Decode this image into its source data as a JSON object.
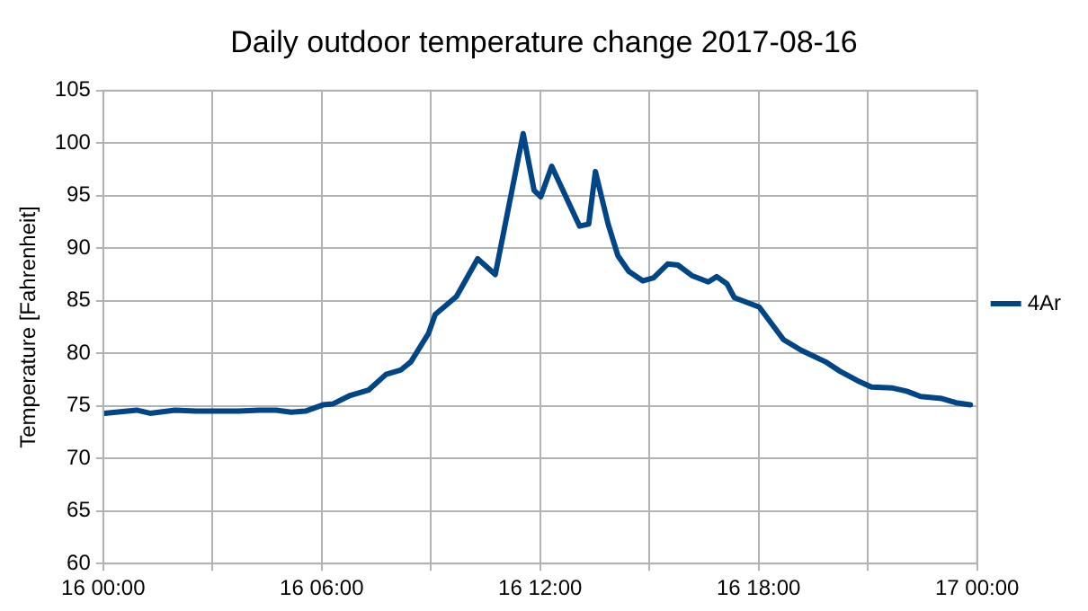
{
  "chart_data": {
    "type": "line",
    "title": "Daily outdoor temperature change 2017-08-16",
    "ylabel": "Temperature [Fahrenheit]",
    "x": [
      "2017-08-16T00:02",
      "2017-08-16T00:55",
      "2017-08-16T01:17",
      "2017-08-16T01:58",
      "2017-08-16T02:33",
      "2017-08-16T03:43",
      "2017-08-16T04:17",
      "2017-08-16T04:45",
      "2017-08-16T05:10",
      "2017-08-16T05:33",
      "2017-08-16T06:02",
      "2017-08-16T06:19",
      "2017-08-16T06:47",
      "2017-08-16T07:17",
      "2017-08-16T07:46",
      "2017-08-16T08:10",
      "2017-08-16T08:27",
      "2017-08-16T08:56",
      "2017-08-16T09:07",
      "2017-08-16T09:42",
      "2017-08-16T10:17",
      "2017-08-16T10:46",
      "2017-08-16T11:32",
      "2017-08-16T11:50",
      "2017-08-16T12:01",
      "2017-08-16T12:19",
      "2017-08-16T13:05",
      "2017-08-16T13:20",
      "2017-08-16T13:31",
      "2017-08-16T13:52",
      "2017-08-16T14:08",
      "2017-08-16T14:26",
      "2017-08-16T14:49",
      "2017-08-16T15:07",
      "2017-08-16T15:30",
      "2017-08-16T15:47",
      "2017-08-16T16:10",
      "2017-08-16T16:37",
      "2017-08-16T16:51",
      "2017-08-16T17:08",
      "2017-08-16T17:20",
      "2017-08-16T18:01",
      "2017-08-16T18:41",
      "2017-08-16T19:10",
      "2017-08-16T19:50",
      "2017-08-16T20:14",
      "2017-08-16T20:43",
      "2017-08-16T21:06",
      "2017-08-16T21:41",
      "2017-08-16T22:04",
      "2017-08-16T22:27",
      "2017-08-16T23:02",
      "2017-08-16T23:25",
      "2017-08-16T23:49"
    ],
    "series": [
      {
        "name": "4Ar",
        "color": "#004586",
        "values": [
          74.3,
          74.6,
          74.3,
          74.6,
          74.5,
          74.5,
          74.6,
          74.6,
          74.4,
          74.5,
          75.1,
          75.2,
          76.0,
          76.5,
          78.0,
          78.4,
          79.2,
          81.9,
          83.7,
          85.4,
          89.0,
          87.5,
          100.9,
          95.5,
          94.9,
          97.8,
          92.1,
          92.3,
          97.3,
          92.3,
          89.3,
          87.8,
          86.9,
          87.2,
          88.5,
          88.4,
          87.4,
          86.8,
          87.3,
          86.6,
          85.3,
          84.4,
          81.3,
          80.3,
          79.2,
          78.3,
          77.4,
          76.8,
          76.7,
          76.4,
          75.9,
          75.7,
          75.3,
          75.1
        ]
      }
    ],
    "xlim": [
      "2017-08-16T00:00",
      "2017-08-17T00:00"
    ],
    "xticks": [
      {
        "value": "2017-08-16T00:00",
        "label": "16 00:00"
      },
      {
        "value": "2017-08-16T03:00",
        "label": null
      },
      {
        "value": "2017-08-16T06:00",
        "label": "16 06:00"
      },
      {
        "value": "2017-08-16T09:00",
        "label": null
      },
      {
        "value": "2017-08-16T12:00",
        "label": "16 12:00"
      },
      {
        "value": "2017-08-16T15:00",
        "label": null
      },
      {
        "value": "2017-08-16T18:00",
        "label": "16 18:00"
      },
      {
        "value": "2017-08-16T21:00",
        "label": null
      },
      {
        "value": "2017-08-17T00:00",
        "label": "17 00:00"
      }
    ],
    "ylim": [
      60,
      105
    ],
    "yticks": [
      60,
      65,
      70,
      75,
      80,
      85,
      90,
      95,
      100,
      105
    ],
    "grid": true,
    "legend": "right",
    "marker": "none",
    "line_style": "solid"
  }
}
